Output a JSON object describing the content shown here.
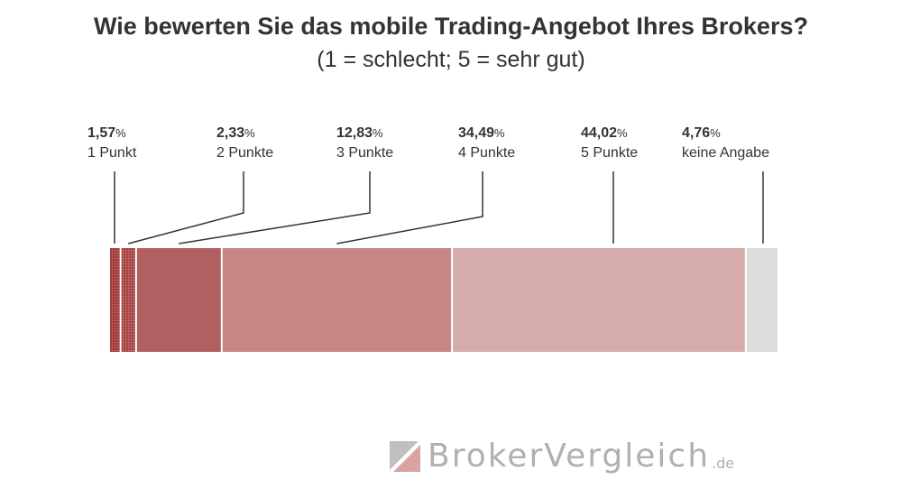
{
  "chart_data": {
    "type": "bar",
    "orientation": "horizontal-stacked-100",
    "title": "Wie bewerten Sie das mobile Trading-Angebot Ihres Brokers?",
    "subtitle": "(1 = schlecht; 5 = sehr gut)",
    "percent_suffix": "%",
    "categories": [
      "1 Punkt",
      "2 Punkte",
      "3 Punkte",
      "4 Punkte",
      "5 Punkte",
      "keine Angabe"
    ],
    "values": [
      1.57,
      2.33,
      12.83,
      34.49,
      44.02,
      4.76
    ],
    "value_labels": [
      "1,57",
      "2,33",
      "12,83",
      "34,49",
      "44,02",
      "4,76"
    ],
    "colors": [
      "#a63a3a",
      "#a84545",
      "#b06060",
      "#c68684",
      "#d6adac",
      "#dcdcdc"
    ],
    "patterned": [
      true,
      true,
      false,
      false,
      false,
      false
    ],
    "legend": "labels above bar with leader lines"
  },
  "logo": {
    "text": "BrokerVergleich",
    "tld": ".de"
  }
}
